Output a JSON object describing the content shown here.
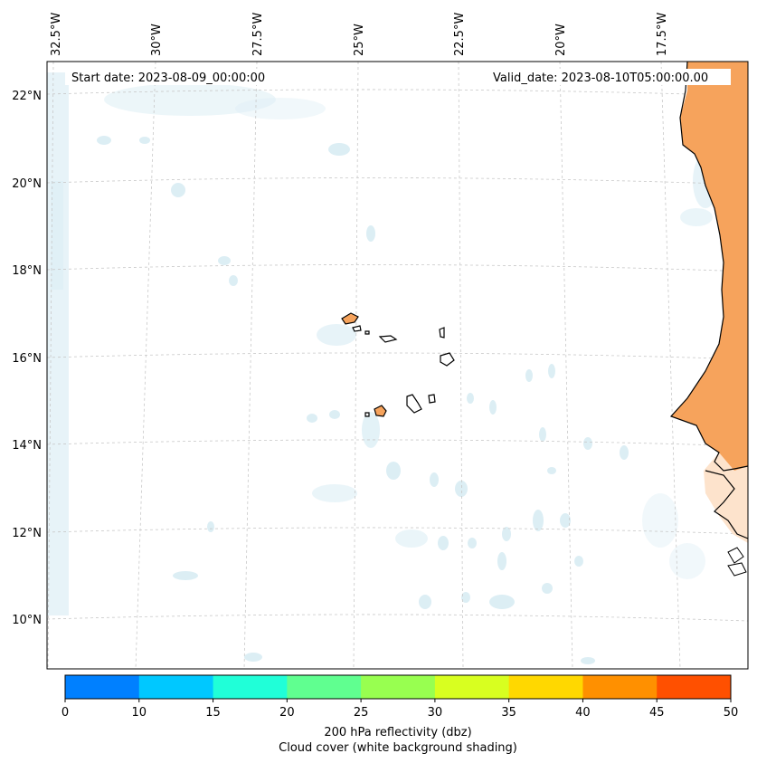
{
  "header": {
    "start_date": "Start date: 2023-08-09_00:00:00",
    "valid_date": "Valid_date: 2023-08-10T05:00:00.00"
  },
  "axes": {
    "lon_labels": [
      "32.5°W",
      "30°W",
      "27.5°W",
      "25°W",
      "22.5°W",
      "20°W",
      "17.5°W"
    ],
    "lat_labels": [
      "22°N",
      "20°N",
      "18°N",
      "16°N",
      "14°N",
      "12°N",
      "10°N"
    ]
  },
  "colorbar": {
    "ticks": [
      "0",
      "10",
      "15",
      "20",
      "25",
      "30",
      "35",
      "40",
      "45",
      "50"
    ],
    "colors": [
      "#0080ff",
      "#00c8ff",
      "#20ffd8",
      "#60ff90",
      "#98ff50",
      "#d8ff20",
      "#ffd800",
      "#ff9000",
      "#ff5000"
    ],
    "label_line1": "200 hPa reflectivity (dbz)",
    "label_line2": "Cloud cover (white background shading)"
  },
  "colors": {
    "land_fill": "#f6a35c",
    "cloud_tint": "#d6ebf3",
    "coast": "#000000",
    "grid": "#c8c8c8"
  }
}
